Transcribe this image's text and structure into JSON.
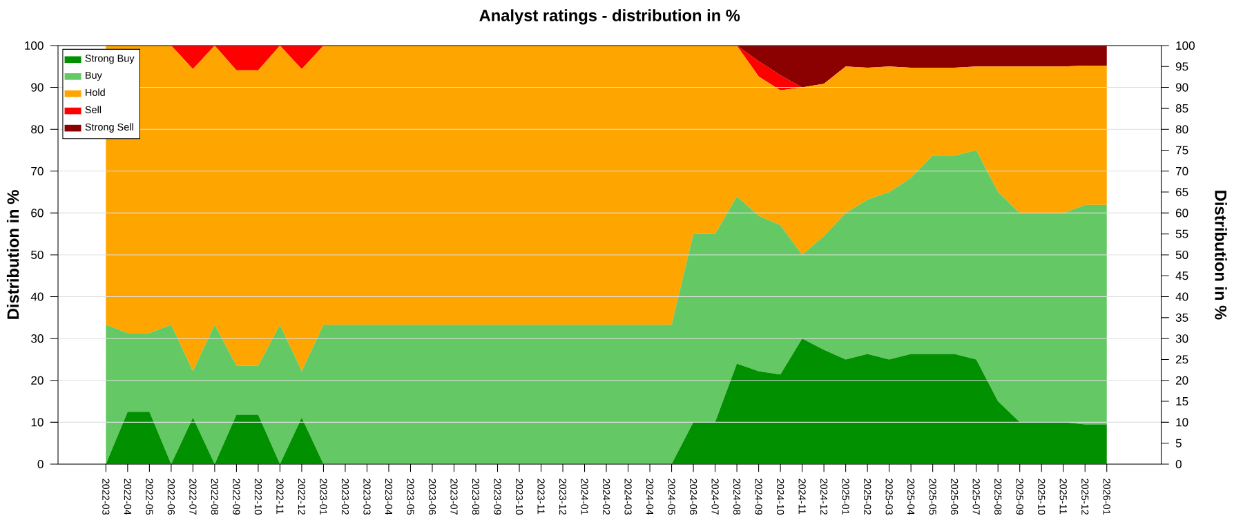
{
  "chart_data": {
    "type": "area",
    "stacked": true,
    "title": "Analyst ratings - distribution in %",
    "ylabel": "Distribution in %",
    "y2label": "Distribution in %",
    "categories": [
      "2022-03",
      "2022-04",
      "2022-05",
      "2022-06",
      "2022-07",
      "2022-08",
      "2022-09",
      "2022-10",
      "2022-11",
      "2022-12",
      "2023-01",
      "2023-02",
      "2023-03",
      "2023-04",
      "2023-05",
      "2023-06",
      "2023-07",
      "2023-08",
      "2023-09",
      "2023-10",
      "2023-11",
      "2023-12",
      "2024-01",
      "2024-02",
      "2024-03",
      "2024-04",
      "2024-05",
      "2024-06",
      "2024-07",
      "2024-08",
      "2024-09",
      "2024-10",
      "2024-11",
      "2024-12",
      "2025-01",
      "2025-02",
      "2025-03",
      "2025-04",
      "2025-05",
      "2025-06",
      "2025-07",
      "2025-08",
      "2025-09",
      "2025-10",
      "2025-11",
      "2025-12",
      "2026-01"
    ],
    "series": [
      {
        "name": "Strong Buy",
        "color": "#009000",
        "values": [
          0,
          12.5,
          12.5,
          0,
          11.1,
          0,
          11.8,
          11.8,
          0,
          11.1,
          0,
          0,
          0,
          0,
          0,
          0,
          0,
          0,
          0,
          0,
          0,
          0,
          0,
          0,
          0,
          0,
          0,
          10,
          10,
          24,
          22.2,
          21.4,
          30,
          27.3,
          25,
          26.3,
          25,
          26.3,
          26.3,
          26.3,
          25,
          15,
          10,
          10,
          10,
          9.5,
          9.5
        ]
      },
      {
        "name": "Buy",
        "color": "#64c864",
        "values": [
          33.3,
          18.8,
          18.8,
          33.3,
          11.1,
          33.3,
          11.7,
          11.7,
          33.3,
          11.1,
          33.3,
          33.3,
          33.3,
          33.3,
          33.3,
          33.3,
          33.3,
          33.3,
          33.3,
          33.3,
          33.3,
          33.3,
          33.3,
          33.3,
          33.3,
          33.3,
          33.3,
          45,
          45,
          40,
          37.1,
          35.7,
          20,
          27.2,
          35,
          36.9,
          40,
          42.1,
          47.4,
          47.4,
          50,
          50,
          50,
          50,
          50,
          52.4,
          52.4
        ]
      },
      {
        "name": "Hold",
        "color": "#ffa500",
        "values": [
          66.7,
          68.7,
          68.7,
          66.7,
          72.2,
          66.7,
          70.6,
          70.6,
          66.7,
          72.2,
          66.7,
          66.7,
          66.7,
          66.7,
          66.7,
          66.7,
          66.7,
          66.7,
          66.7,
          66.7,
          66.7,
          66.7,
          66.7,
          66.7,
          66.7,
          66.7,
          66.7,
          45,
          45,
          36,
          33.3,
          32.2,
          40,
          36.4,
          35,
          31.5,
          30,
          26.3,
          21,
          21,
          20,
          30,
          35,
          35,
          35,
          33.3,
          33.3
        ]
      },
      {
        "name": "Sell",
        "color": "#ff0000",
        "values": [
          0,
          0,
          0,
          0,
          5.6,
          0,
          5.9,
          5.9,
          0,
          5.6,
          0,
          0,
          0,
          0,
          0,
          0,
          0,
          0,
          0,
          0,
          0,
          0,
          0,
          0,
          0,
          0,
          0,
          0,
          0,
          0,
          3.7,
          3.6,
          0,
          0,
          0,
          0,
          0,
          0,
          0,
          0,
          0,
          0,
          0,
          0,
          0,
          0,
          0
        ]
      },
      {
        "name": "Strong Sell",
        "color": "#8b0000",
        "values": [
          0,
          0,
          0,
          0,
          0,
          0,
          0,
          0,
          0,
          0,
          0,
          0,
          0,
          0,
          0,
          0,
          0,
          0,
          0,
          0,
          0,
          0,
          0,
          0,
          0,
          0,
          0,
          0,
          0,
          0,
          3.7,
          7.1,
          10,
          9.1,
          5,
          5.3,
          5,
          5.3,
          5.3,
          5.3,
          5,
          5,
          5,
          5,
          5,
          4.8,
          4.8
        ]
      }
    ],
    "ylim": [
      0,
      100
    ],
    "yticks": [
      0,
      10,
      20,
      30,
      40,
      50,
      60,
      70,
      80,
      90,
      100
    ],
    "y2lim": [
      0,
      100
    ],
    "y2ticks": [
      0,
      5,
      10,
      15,
      20,
      25,
      30,
      35,
      40,
      45,
      50,
      55,
      60,
      65,
      70,
      75,
      80,
      85,
      90,
      95,
      100
    ],
    "grid": "y",
    "legend": "top left"
  }
}
